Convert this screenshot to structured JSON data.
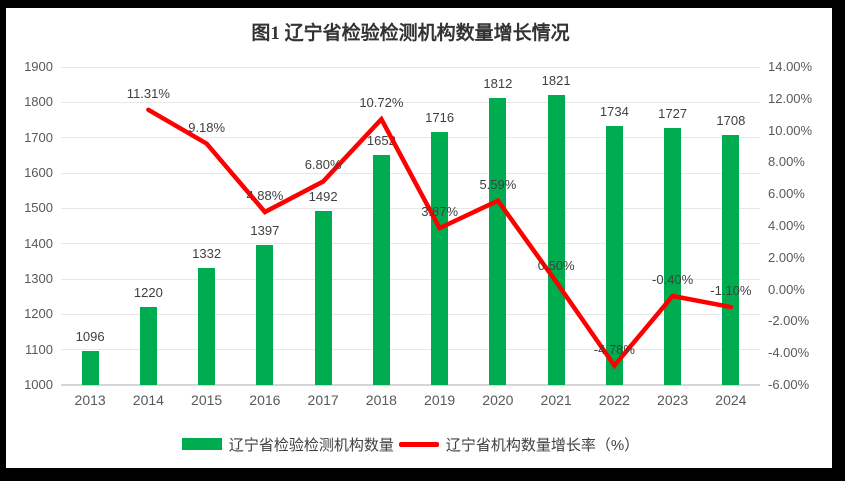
{
  "chart_data": {
    "type": "combo",
    "title": "图1 辽宁省检验检测机构数量增长情况",
    "categories": [
      "2013",
      "2014",
      "2015",
      "2016",
      "2017",
      "2018",
      "2019",
      "2020",
      "2021",
      "2022",
      "2023",
      "2024"
    ],
    "series": [
      {
        "name": "辽宁省检验检测机构数量",
        "chart_type": "bar",
        "axis": "left",
        "color": "#00AC50",
        "values": [
          1096,
          1220,
          1332,
          1397,
          1492,
          1652,
          1716,
          1812,
          1821,
          1734,
          1727,
          1708
        ],
        "labels": [
          "1096",
          "1220",
          "1332",
          "1397",
          "1492",
          "1652",
          "1716",
          "1812",
          "1821",
          "1734",
          "1727",
          "1708"
        ]
      },
      {
        "name": "辽宁省机构数量增长率（%）",
        "chart_type": "line",
        "axis": "right",
        "color": "#FF0000",
        "values": [
          null,
          11.31,
          9.18,
          4.88,
          6.8,
          10.72,
          3.87,
          5.59,
          0.5,
          -4.78,
          -0.4,
          -1.1
        ],
        "labels": [
          "",
          "11.31%",
          "9.18%",
          "4.88%",
          "6.80%",
          "10.72%",
          "3.87%",
          "5.59%",
          "0.50%",
          "-4.78%",
          "-0.40%",
          "-1.10%"
        ]
      }
    ],
    "left_axis": {
      "min": 1000,
      "max": 1900,
      "step": 100,
      "ticks": [
        "1000",
        "1100",
        "1200",
        "1300",
        "1400",
        "1500",
        "1600",
        "1700",
        "1800",
        "1900"
      ]
    },
    "right_axis": {
      "min": -6,
      "max": 14,
      "step": 2,
      "ticks": [
        "-6.00%",
        "-4.00%",
        "-2.00%",
        "0.00%",
        "2.00%",
        "4.00%",
        "6.00%",
        "8.00%",
        "10.00%",
        "12.00%",
        "14.00%"
      ]
    },
    "grid": true,
    "legend_position": "bottom"
  },
  "legend": {
    "items": [
      {
        "label": "辽宁省检验检测机构数量",
        "swatch": "bar",
        "color": "#00AC50"
      },
      {
        "label": "辽宁省机构数量增长率（%）",
        "swatch": "line",
        "color": "#FF0000"
      }
    ]
  }
}
